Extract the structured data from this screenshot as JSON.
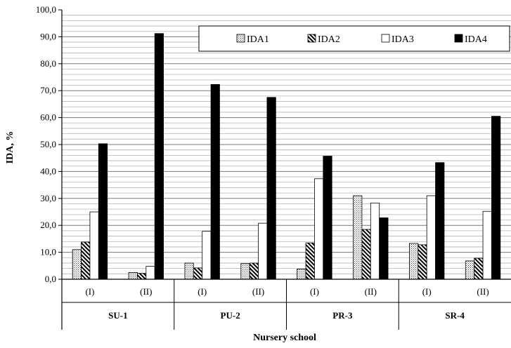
{
  "chart_data": {
    "type": "bar",
    "xlabel": "Nursery school",
    "ylabel": "IDA, %",
    "ylim": [
      0,
      100
    ],
    "yticks": [
      "0,0",
      "10,0",
      "20,0",
      "30,0",
      "40,0",
      "50,0",
      "60,0",
      "70,0",
      "80,0",
      "90,0",
      "100,0"
    ],
    "grid": true,
    "legend_position": "top-right",
    "groups": [
      "SU-1",
      "PU-2",
      "PR-3",
      "SR-4"
    ],
    "subgroups": [
      "(I)",
      "(II)"
    ],
    "categories": [
      "SU-1 (I)",
      "SU-1 (II)",
      "PU-2 (I)",
      "PU-2 (II)",
      "PR-3 (I)",
      "PR-3 (II)",
      "SR-4 (I)",
      "SR-4 (II)"
    ],
    "series": [
      {
        "name": "IDA1",
        "pattern": "dots",
        "values": [
          11.0,
          2.5,
          6.0,
          5.8,
          3.8,
          31.0,
          13.3,
          6.8
        ]
      },
      {
        "name": "IDA2",
        "pattern": "diagonal",
        "values": [
          13.8,
          2.2,
          4.2,
          6.0,
          13.5,
          18.5,
          12.8,
          7.8
        ]
      },
      {
        "name": "IDA3",
        "pattern": "white",
        "values": [
          25.0,
          4.8,
          17.8,
          20.8,
          37.3,
          28.3,
          31.0,
          25.2
        ]
      },
      {
        "name": "IDA4",
        "pattern": "black",
        "values": [
          50.3,
          91.2,
          72.3,
          67.5,
          45.7,
          22.8,
          43.3,
          60.5
        ]
      }
    ]
  }
}
